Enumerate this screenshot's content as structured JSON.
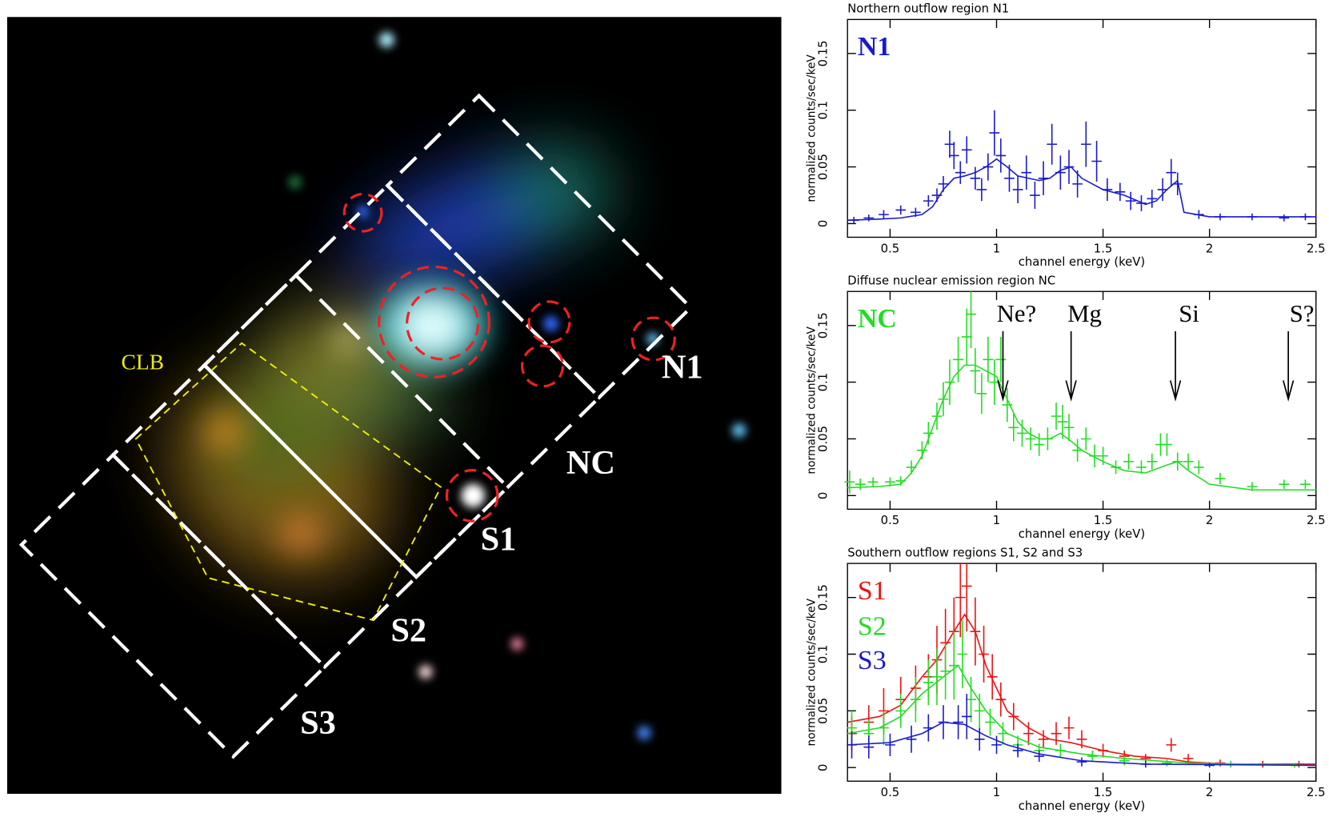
{
  "image": {
    "labels": [
      "N1",
      "NC",
      "S1",
      "S2",
      "S3",
      "CLB"
    ]
  },
  "chart_data": [
    {
      "type": "line",
      "title": "Northern outflow region N1",
      "x_label": "channel energy (keV)",
      "y_label": "normalized counts/sec/keV",
      "xlim": [
        0.3,
        2.5
      ],
      "xticks": [
        0.5,
        1,
        1.5,
        2,
        2.5
      ],
      "ylim": [
        -0.012,
        0.18
      ],
      "yticks": [
        0,
        0.05,
        0.1,
        0.15
      ],
      "series": [
        {
          "name": "N1",
          "color": "#1a1acc",
          "x": [
            0.33,
            0.4,
            0.47,
            0.55,
            0.62,
            0.68,
            0.72,
            0.75,
            0.78,
            0.8,
            0.83,
            0.86,
            0.9,
            0.93,
            0.96,
            0.99,
            1.02,
            1.06,
            1.1,
            1.14,
            1.18,
            1.22,
            1.26,
            1.3,
            1.34,
            1.38,
            1.42,
            1.47,
            1.52,
            1.58,
            1.63,
            1.68,
            1.73,
            1.78,
            1.82,
            1.85,
            1.95,
            2.05,
            2.2,
            2.35,
            2.45
          ],
          "values": [
            0.003,
            0.005,
            0.008,
            0.012,
            0.01,
            0.02,
            0.025,
            0.035,
            0.07,
            0.06,
            0.045,
            0.065,
            0.04,
            0.03,
            0.05,
            0.08,
            0.06,
            0.04,
            0.03,
            0.045,
            0.025,
            0.04,
            0.07,
            0.045,
            0.05,
            0.035,
            0.07,
            0.055,
            0.03,
            0.028,
            0.02,
            0.018,
            0.022,
            0.03,
            0.045,
            0.035,
            0.008,
            0.006,
            0.006,
            0.005,
            0.006
          ],
          "errors": [
            0.003,
            0.003,
            0.004,
            0.004,
            0.004,
            0.005,
            0.006,
            0.007,
            0.012,
            0.012,
            0.01,
            0.012,
            0.01,
            0.01,
            0.012,
            0.02,
            0.015,
            0.012,
            0.012,
            0.015,
            0.012,
            0.015,
            0.018,
            0.015,
            0.015,
            0.012,
            0.02,
            0.018,
            0.01,
            0.008,
            0.008,
            0.007,
            0.008,
            0.01,
            0.012,
            0.01,
            0.004,
            0.003,
            0.003,
            0.003,
            0.003
          ],
          "model": {
            "x": [
              0.3,
              0.45,
              0.55,
              0.65,
              0.7,
              0.75,
              0.8,
              0.85,
              0.9,
              0.95,
              1.0,
              1.05,
              1.1,
              1.2,
              1.25,
              1.3,
              1.35,
              1.4,
              1.5,
              1.6,
              1.7,
              1.75,
              1.8,
              1.85,
              1.88,
              2.0,
              2.2,
              2.4,
              2.5
            ],
            "values": [
              0.003,
              0.004,
              0.005,
              0.008,
              0.015,
              0.03,
              0.04,
              0.042,
              0.045,
              0.05,
              0.057,
              0.05,
              0.042,
              0.038,
              0.04,
              0.047,
              0.05,
              0.04,
              0.03,
              0.025,
              0.017,
              0.02,
              0.03,
              0.038,
              0.01,
              0.006,
              0.006,
              0.006,
              0.006
            ]
          }
        }
      ]
    },
    {
      "type": "line",
      "title": "Diffuse nuclear emission region NC",
      "x_label": "channel energy (keV)",
      "y_label": "normalized counts/sec/keV",
      "xlim": [
        0.3,
        2.5
      ],
      "xticks": [
        0.5,
        1,
        1.5,
        2,
        2.5
      ],
      "ylim": [
        -0.012,
        0.18
      ],
      "yticks": [
        0,
        0.05,
        0.1,
        0.15
      ],
      "annotations": [
        {
          "text": "Ne?",
          "x": 1.03
        },
        {
          "text": "Mg",
          "x": 1.35
        },
        {
          "text": "Si",
          "x": 1.84
        },
        {
          "text": "S?",
          "x": 2.37
        }
      ],
      "series": [
        {
          "name": "NC",
          "color": "#22dd22",
          "x": [
            0.31,
            0.36,
            0.42,
            0.5,
            0.55,
            0.6,
            0.65,
            0.68,
            0.72,
            0.75,
            0.78,
            0.82,
            0.86,
            0.88,
            0.9,
            0.93,
            0.96,
            0.99,
            1.02,
            1.05,
            1.08,
            1.12,
            1.16,
            1.2,
            1.24,
            1.28,
            1.31,
            1.34,
            1.38,
            1.42,
            1.46,
            1.5,
            1.56,
            1.62,
            1.68,
            1.73,
            1.77,
            1.8,
            1.85,
            1.9,
            1.95,
            2.05,
            2.2,
            2.35,
            2.45
          ],
          "values": [
            0.012,
            0.01,
            0.012,
            0.012,
            0.013,
            0.025,
            0.04,
            0.055,
            0.07,
            0.085,
            0.1,
            0.12,
            0.14,
            0.16,
            0.11,
            0.09,
            0.12,
            0.1,
            0.12,
            0.08,
            0.06,
            0.055,
            0.05,
            0.045,
            0.05,
            0.07,
            0.065,
            0.06,
            0.04,
            0.05,
            0.035,
            0.035,
            0.025,
            0.03,
            0.025,
            0.03,
            0.045,
            0.045,
            0.03,
            0.03,
            0.025,
            0.015,
            0.008,
            0.01,
            0.01
          ],
          "errors": [
            0.01,
            0.005,
            0.004,
            0.004,
            0.004,
            0.006,
            0.008,
            0.01,
            0.012,
            0.015,
            0.02,
            0.02,
            0.025,
            0.03,
            0.02,
            0.018,
            0.02,
            0.02,
            0.02,
            0.015,
            0.012,
            0.012,
            0.01,
            0.01,
            0.01,
            0.012,
            0.015,
            0.012,
            0.01,
            0.01,
            0.01,
            0.008,
            0.006,
            0.007,
            0.006,
            0.007,
            0.01,
            0.01,
            0.008,
            0.007,
            0.006,
            0.005,
            0.004,
            0.004,
            0.004
          ],
          "model": {
            "x": [
              0.3,
              0.45,
              0.55,
              0.6,
              0.65,
              0.7,
              0.75,
              0.8,
              0.85,
              0.9,
              0.95,
              1.0,
              1.05,
              1.1,
              1.15,
              1.2,
              1.25,
              1.3,
              1.35,
              1.4,
              1.5,
              1.6,
              1.7,
              1.8,
              1.85,
              1.9,
              2.0,
              2.2,
              2.5
            ],
            "values": [
              0.007,
              0.008,
              0.01,
              0.02,
              0.035,
              0.06,
              0.085,
              0.105,
              0.115,
              0.115,
              0.11,
              0.105,
              0.085,
              0.065,
              0.055,
              0.05,
              0.05,
              0.055,
              0.048,
              0.04,
              0.03,
              0.022,
              0.02,
              0.027,
              0.03,
              0.022,
              0.01,
              0.005,
              0.005
            ]
          }
        }
      ]
    },
    {
      "type": "line",
      "title": "Southern outflow regions S1, S2 and S3",
      "x_label": "channel energy (keV)",
      "y_label": "normalized counts/sec/keV",
      "xlim": [
        0.3,
        2.5
      ],
      "xticks": [
        0.5,
        1,
        1.5,
        2,
        2.5
      ],
      "ylim": [
        -0.012,
        0.18
      ],
      "yticks": [
        0,
        0.05,
        0.1,
        0.15
      ],
      "series": [
        {
          "name": "S1",
          "color": "#ee1111",
          "x": [
            0.32,
            0.4,
            0.47,
            0.55,
            0.62,
            0.68,
            0.72,
            0.76,
            0.8,
            0.83,
            0.86,
            0.9,
            0.94,
            0.98,
            1.02,
            1.08,
            1.15,
            1.22,
            1.28,
            1.34,
            1.4,
            1.5,
            1.6,
            1.7,
            1.82,
            1.9,
            2.05,
            2.25,
            2.42
          ],
          "values": [
            0.03,
            0.04,
            0.05,
            0.06,
            0.07,
            0.08,
            0.095,
            0.11,
            0.12,
            0.15,
            0.16,
            0.12,
            0.1,
            0.08,
            0.06,
            0.045,
            0.03,
            0.025,
            0.03,
            0.035,
            0.025,
            0.015,
            0.01,
            0.008,
            0.02,
            0.008,
            0.004,
            0.003,
            0.003
          ],
          "errors": [
            0.015,
            0.015,
            0.02,
            0.02,
            0.02,
            0.02,
            0.03,
            0.03,
            0.03,
            0.035,
            0.04,
            0.03,
            0.025,
            0.02,
            0.015,
            0.012,
            0.01,
            0.008,
            0.01,
            0.01,
            0.008,
            0.006,
            0.005,
            0.004,
            0.006,
            0.004,
            0.003,
            0.003,
            0.003
          ],
          "model": {
            "x": [
              0.3,
              0.45,
              0.55,
              0.65,
              0.72,
              0.8,
              0.85,
              0.9,
              0.95,
              1.0,
              1.05,
              1.15,
              1.25,
              1.35,
              1.5,
              1.65,
              1.8,
              1.9,
              2.1,
              2.5
            ],
            "values": [
              0.04,
              0.045,
              0.055,
              0.08,
              0.095,
              0.12,
              0.135,
              0.12,
              0.09,
              0.07,
              0.05,
              0.035,
              0.025,
              0.022,
              0.015,
              0.01,
              0.008,
              0.005,
              0.003,
              0.003
            ]
          }
        },
        {
          "name": "S2",
          "color": "#22dd22",
          "x": [
            0.32,
            0.4,
            0.47,
            0.55,
            0.62,
            0.68,
            0.72,
            0.76,
            0.8,
            0.84,
            0.88,
            0.92,
            0.97,
            1.03,
            1.1,
            1.2,
            1.3,
            1.45,
            1.6,
            1.8,
            2.1,
            2.4
          ],
          "values": [
            0.035,
            0.03,
            0.035,
            0.05,
            0.06,
            0.075,
            0.08,
            0.085,
            0.09,
            0.1,
            0.06,
            0.05,
            0.04,
            0.03,
            0.02,
            0.015,
            0.015,
            0.01,
            0.006,
            0.004,
            0.003,
            0.002
          ],
          "errors": [
            0.015,
            0.012,
            0.015,
            0.015,
            0.02,
            0.02,
            0.025,
            0.025,
            0.03,
            0.03,
            0.02,
            0.015,
            0.012,
            0.01,
            0.008,
            0.006,
            0.006,
            0.005,
            0.004,
            0.003,
            0.003,
            0.002
          ],
          "model": {
            "x": [
              0.3,
              0.45,
              0.55,
              0.65,
              0.75,
              0.82,
              0.88,
              0.95,
              1.05,
              1.2,
              1.4,
              1.6,
              1.9,
              2.5
            ],
            "values": [
              0.03,
              0.035,
              0.045,
              0.065,
              0.08,
              0.09,
              0.07,
              0.05,
              0.03,
              0.018,
              0.012,
              0.008,
              0.004,
              0.002
            ]
          }
        },
        {
          "name": "S3",
          "color": "#1a1acc",
          "x": [
            0.32,
            0.4,
            0.5,
            0.6,
            0.68,
            0.75,
            0.82,
            0.86,
            0.92,
            1.0,
            1.1,
            1.2,
            1.4,
            1.7,
            2.0
          ],
          "values": [
            0.02,
            0.018,
            0.02,
            0.025,
            0.035,
            0.04,
            0.04,
            0.045,
            0.025,
            0.02,
            0.015,
            0.01,
            0.005,
            0.003,
            0.002
          ],
          "errors": [
            0.012,
            0.01,
            0.01,
            0.012,
            0.012,
            0.015,
            0.015,
            0.02,
            0.01,
            0.008,
            0.006,
            0.005,
            0.004,
            0.003,
            0.002
          ],
          "model": {
            "x": [
              0.3,
              0.5,
              0.65,
              0.75,
              0.85,
              0.95,
              1.05,
              1.2,
              1.4,
              1.7,
              2.5
            ],
            "values": [
              0.02,
              0.022,
              0.03,
              0.04,
              0.038,
              0.028,
              0.02,
              0.012,
              0.006,
              0.003,
              0.002
            ]
          }
        }
      ]
    }
  ]
}
